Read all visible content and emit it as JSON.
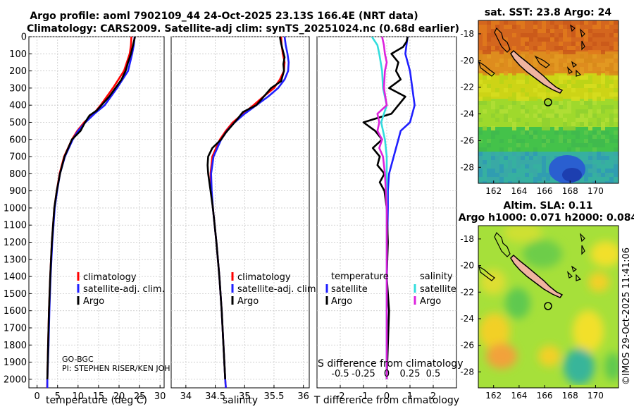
{
  "titles": {
    "main_line1": "Argo profile: aoml 7902109_44 24-Oct-2025 23.13S 166.4E (NRT data)",
    "main_line2": "Climatology: CARS2009. Satellite-adj clim: synTS_20251024.nc (0.68d earlier)",
    "sst_title": "sat. SST: 23.8 Argo: 24",
    "sla_title1": "Altim. SLA: 0.11",
    "sla_title2": "Argo h1000: 0.071 h2000: 0.084",
    "watermark": "©IMOS 29-Oct-2025 11:41:06",
    "program": "GO-BGC",
    "pi": "PI: STEPHEN RISER/KEN JOHN"
  },
  "colors": {
    "climatology": "#ff0000",
    "satellite_adj": "#1f1fff",
    "argo": "#000000",
    "sat_salinity": "#33dddd",
    "argo_salinity": "#dd22dd",
    "land": "#f0b4a0"
  },
  "chart_data": [
    {
      "type": "line",
      "name": "temperature-profile",
      "xlabel": "temperature (deg C)",
      "ylabel": "depth (m)",
      "xlim": [
        -2,
        31
      ],
      "ylim": [
        2050,
        0
      ],
      "x_ticks": [
        0,
        5,
        10,
        15,
        20,
        25,
        30
      ],
      "y_ticks": [
        0,
        100,
        200,
        300,
        400,
        500,
        600,
        700,
        800,
        900,
        1000,
        1100,
        1200,
        1300,
        1400,
        1500,
        1600,
        1700,
        1800,
        1900,
        2000
      ],
      "legend": [
        "climatology",
        "satellite-adj. clim.",
        "Argo"
      ],
      "series": [
        {
          "name": "climatology",
          "color": "#ff0000",
          "depth": [
            0,
            50,
            100,
            200,
            300,
            400,
            450,
            500,
            550,
            600,
            700,
            800,
            900,
            1000,
            1200,
            1400,
            1600,
            1800,
            2000,
            2050
          ],
          "values": [
            23.0,
            22.9,
            22.6,
            21.2,
            18.5,
            15.5,
            13.8,
            11.5,
            9.8,
            8.5,
            6.6,
            5.5,
            4.8,
            4.2,
            3.6,
            3.2,
            2.9,
            2.7,
            2.5,
            2.45
          ]
        },
        {
          "name": "satellite-adj. clim.",
          "color": "#1f1fff",
          "depth": [
            0,
            50,
            100,
            200,
            300,
            400,
            450,
            500,
            550,
            600,
            700,
            800,
            900,
            1000,
            1200,
            1400,
            1600,
            1800,
            2000,
            2050
          ],
          "values": [
            23.8,
            23.6,
            23.2,
            22.2,
            19.5,
            16.5,
            14.0,
            11.8,
            10.0,
            8.7,
            6.8,
            5.6,
            4.9,
            4.3,
            3.7,
            3.3,
            3.0,
            2.8,
            2.5,
            2.5
          ]
        },
        {
          "name": "Argo",
          "color": "#000000",
          "depth": [
            0,
            30,
            60,
            100,
            150,
            200,
            250,
            300,
            350,
            400,
            430,
            460,
            500,
            550,
            600,
            650,
            700,
            800,
            900,
            1000,
            1200,
            1400,
            1600,
            1800,
            2000
          ],
          "values": [
            23.9,
            23.6,
            23.3,
            22.9,
            22.2,
            21.6,
            20.6,
            19.1,
            17.6,
            15.7,
            14.6,
            12.8,
            11.7,
            10.6,
            8.5,
            7.6,
            6.7,
            5.6,
            4.8,
            4.2,
            3.6,
            3.2,
            2.9,
            2.7,
            2.5
          ]
        }
      ]
    },
    {
      "type": "line",
      "name": "salinity-profile",
      "xlabel": "salinity",
      "ylabel": "depth (m)",
      "xlim": [
        33.75,
        36.1
      ],
      "ylim": [
        2050,
        0
      ],
      "x_ticks": [
        34,
        34.5,
        35,
        35.5,
        36
      ],
      "legend": [
        "climatology",
        "satellite-adj. clim.",
        "Argo"
      ],
      "series": [
        {
          "name": "climatology",
          "color": "#ff0000",
          "depth": [
            0,
            50,
            100,
            150,
            200,
            250,
            300,
            350,
            400,
            450,
            500,
            550,
            600,
            700,
            800,
            900,
            1000,
            1200,
            1400,
            1600,
            1800,
            2000,
            2050
          ],
          "values": [
            35.62,
            35.63,
            35.65,
            35.68,
            35.67,
            35.6,
            35.5,
            35.32,
            35.15,
            34.97,
            34.8,
            34.68,
            34.58,
            34.45,
            34.42,
            34.43,
            34.46,
            34.52,
            34.57,
            34.61,
            34.64,
            34.67,
            34.68
          ]
        },
        {
          "name": "satellite-adj. clim.",
          "color": "#1f1fff",
          "depth": [
            0,
            50,
            100,
            150,
            200,
            250,
            300,
            350,
            400,
            450,
            500,
            550,
            600,
            700,
            800,
            900,
            1000,
            1200,
            1400,
            1600,
            1800,
            2000,
            2050
          ],
          "values": [
            35.68,
            35.7,
            35.73,
            35.75,
            35.74,
            35.68,
            35.57,
            35.4,
            35.2,
            35.0,
            34.83,
            34.7,
            34.6,
            34.47,
            34.43,
            34.44,
            34.46,
            34.52,
            34.57,
            34.61,
            34.64,
            34.67,
            34.68
          ]
        },
        {
          "name": "Argo",
          "color": "#000000",
          "depth": [
            0,
            40,
            80,
            120,
            160,
            200,
            260,
            300,
            360,
            400,
            440,
            480,
            520,
            560,
            600,
            650,
            700,
            750,
            800,
            850,
            900,
            1000,
            1200,
            1400,
            1600,
            1800,
            2000
          ],
          "values": [
            35.6,
            35.62,
            35.65,
            35.68,
            35.66,
            35.67,
            35.62,
            35.45,
            35.3,
            35.2,
            34.97,
            34.88,
            34.78,
            34.68,
            34.6,
            34.45,
            34.38,
            34.37,
            34.38,
            34.4,
            34.42,
            34.46,
            34.52,
            34.57,
            34.61,
            34.64,
            34.67
          ]
        }
      ]
    },
    {
      "type": "line",
      "name": "difference-profile",
      "xlabel": "T difference from climatology",
      "top_xlabel": "S difference from climatology",
      "xlim": [
        -3,
        3
      ],
      "ylim": [
        2050,
        0
      ],
      "x_ticks": [
        -2,
        -1,
        0,
        1,
        2
      ],
      "top_x_ticks": [
        "-0.5",
        "-0.25",
        "0",
        "0.25",
        "0.5"
      ],
      "legend_left_title": "temperature",
      "legend_right_title": "salinity",
      "legend": [
        "satellite",
        "Argo",
        "satellite",
        "Argo"
      ],
      "series": [
        {
          "name": "temperature satellite",
          "color": "#1f1fff",
          "depth": [
            0,
            50,
            100,
            200,
            300,
            400,
            500,
            550,
            600,
            650,
            700,
            750,
            800,
            900,
            1000,
            1200,
            1400,
            1600,
            1800,
            2000
          ],
          "values": [
            0.9,
            0.85,
            0.8,
            1.0,
            1.1,
            1.2,
            1.0,
            0.6,
            0.5,
            0.4,
            0.3,
            0.2,
            0.1,
            0.05,
            0.05,
            0.02,
            0.01,
            0.0,
            0.0,
            0.0
          ]
        },
        {
          "name": "temperature Argo",
          "color": "#000000",
          "depth": [
            0,
            30,
            60,
            100,
            150,
            200,
            250,
            300,
            350,
            400,
            450,
            500,
            550,
            600,
            650,
            700,
            750,
            800,
            850,
            900,
            1000,
            1200,
            1400,
            1600,
            1800,
            2000
          ],
          "values": [
            0.9,
            0.85,
            0.7,
            0.2,
            0.5,
            0.4,
            0.6,
            0.1,
            0.8,
            0.5,
            0.2,
            -1.0,
            -0.5,
            -0.2,
            -0.6,
            -0.3,
            -0.4,
            -0.1,
            -0.3,
            -0.1,
            0.0,
            0.05,
            0.0,
            0.1,
            0.05,
            0.0
          ]
        },
        {
          "name": "salinity satellite",
          "color": "#33dddd",
          "depth": [
            0,
            50,
            100,
            200,
            300,
            400,
            500,
            600,
            700,
            800,
            900,
            1000,
            1200,
            1400,
            1600,
            1800,
            2000
          ],
          "values": [
            -0.16,
            -0.1,
            -0.08,
            -0.05,
            -0.04,
            0.0,
            -0.06,
            -0.02,
            0.0,
            0.0,
            0.0,
            0.0,
            0.0,
            0.0,
            0.0,
            0.0,
            0.0
          ]
        },
        {
          "name": "salinity Argo",
          "color": "#dd22dd",
          "depth": [
            0,
            50,
            100,
            150,
            200,
            300,
            400,
            450,
            500,
            550,
            600,
            650,
            700,
            800,
            900,
            1000,
            1200,
            1400,
            1600,
            1800,
            2000
          ],
          "values": [
            -0.05,
            -0.03,
            -0.02,
            0.0,
            -0.02,
            -0.03,
            0.0,
            -0.1,
            -0.08,
            -0.1,
            -0.05,
            -0.08,
            -0.04,
            -0.02,
            -0.01,
            0.0,
            0.0,
            0.0,
            0.0,
            0.0,
            0.0
          ]
        }
      ]
    },
    {
      "type": "heatmap",
      "name": "sst-map",
      "title": "sat. SST: 23.8 Argo: 24",
      "x_ticks": [
        162,
        164,
        166,
        168,
        170
      ],
      "y_ticks": [
        -18,
        -20,
        -22,
        -24,
        -26,
        -28
      ],
      "xlim": [
        160.8,
        171.8
      ],
      "ylim": [
        -29.2,
        -17.0
      ],
      "float_position": {
        "lon": 166.4,
        "lat": -23.13
      }
    },
    {
      "type": "heatmap",
      "name": "sla-map",
      "title": "Altim. SLA: 0.11",
      "x_ticks": [
        162,
        164,
        166,
        168,
        170
      ],
      "y_ticks": [
        -18,
        -20,
        -22,
        -24,
        -26,
        -28
      ],
      "xlim": [
        160.8,
        171.8
      ],
      "ylim": [
        -29.2,
        -17.0
      ],
      "float_position": {
        "lon": 166.4,
        "lat": -23.13
      }
    }
  ]
}
